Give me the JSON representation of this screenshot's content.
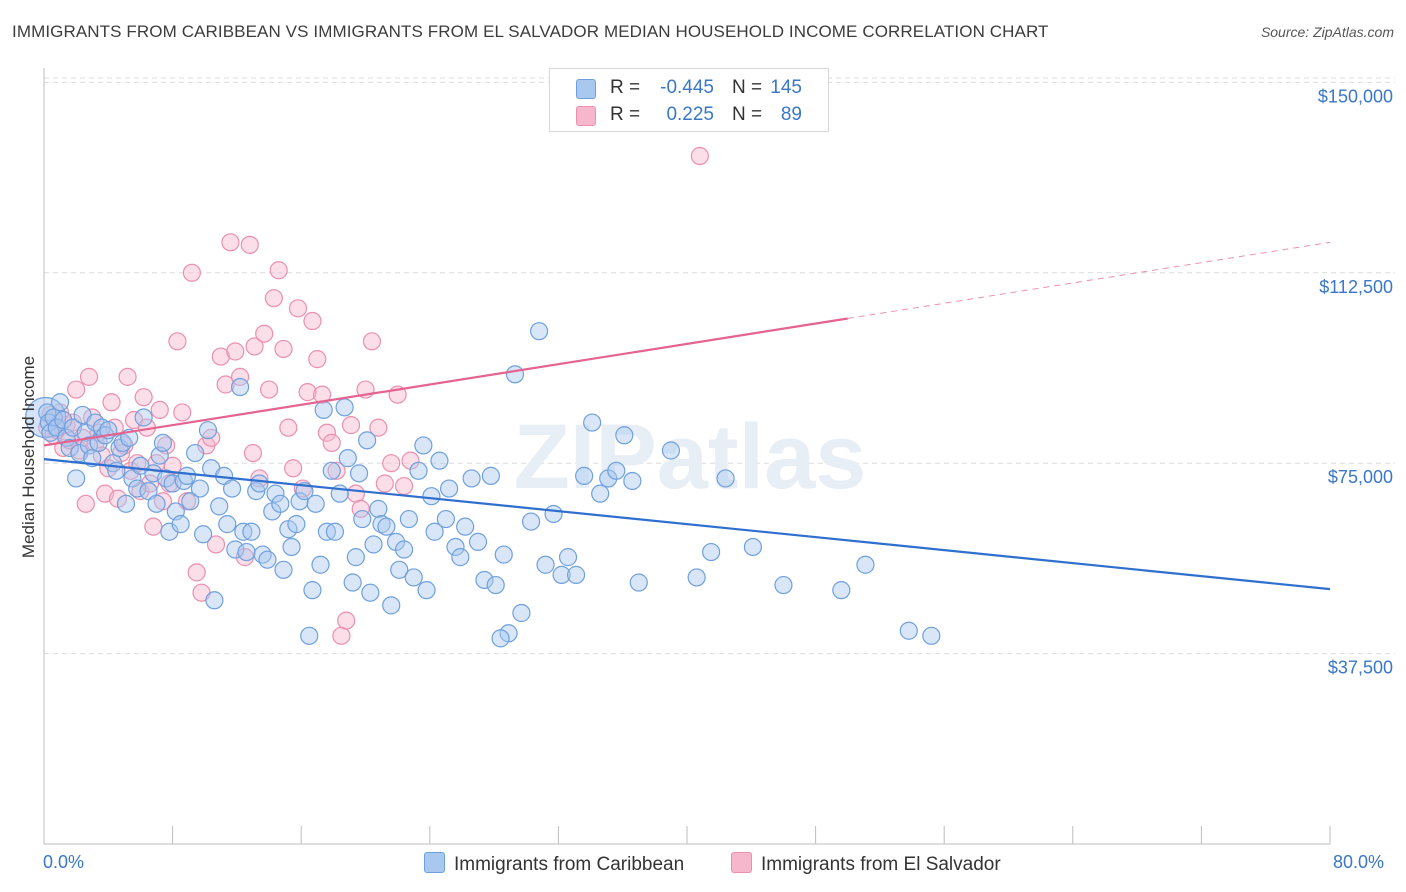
{
  "title": "IMMIGRANTS FROM CARIBBEAN VS IMMIGRANTS FROM EL SALVADOR MEDIAN HOUSEHOLD INCOME CORRELATION CHART",
  "source": "Source: ZipAtlas.com",
  "watermark": "ZIPatlas",
  "legend": {
    "rows": [
      {
        "r_label": "R =",
        "r_value": "-0.445",
        "n_label": "N =",
        "n_value": "145",
        "color": "#a9c8f0"
      },
      {
        "r_label": "R =",
        "r_value": "0.225",
        "n_label": "N =",
        "n_value": "89",
        "color": "#f6b6cb"
      }
    ]
  },
  "colors": {
    "blue_fill": "#a9c8f0",
    "blue_stroke": "#6fa0de",
    "blue_line": "#2f6fcf",
    "pink_fill": "#f6b6cb",
    "pink_stroke": "#ec8fae",
    "pink_line": "#e4638f",
    "accent_text": "#3a77c8"
  },
  "chart_data": {
    "type": "scatter",
    "title": "IMMIGRANTS FROM CARIBBEAN VS IMMIGRANTS FROM EL SALVADOR MEDIAN HOUSEHOLD INCOME CORRELATION CHART",
    "xlabel": "",
    "ylabel": "Median Household Income",
    "xlim": [
      0,
      80
    ],
    "ylim": [
      0,
      155000
    ],
    "x_tick_labels": [
      "0.0%",
      "80.0%"
    ],
    "y_ticks": [
      37500,
      75000,
      112500,
      150000
    ],
    "y_tick_labels": [
      "$37,500",
      "$75,000",
      "$112,500",
      "$150,000"
    ],
    "grid": true,
    "series": [
      {
        "name": "Immigrants from Caribbean",
        "r": -0.445,
        "n": 145,
        "trend": {
          "x0": 0,
          "y0": 75800,
          "x1": 80,
          "y1": 50200
        },
        "points": [
          [
            0.2,
            85000
          ],
          [
            0.3,
            83000
          ],
          [
            0.4,
            81000
          ],
          [
            0.6,
            84000
          ],
          [
            0.8,
            82000
          ],
          [
            1.0,
            87000
          ],
          [
            1.2,
            83500
          ],
          [
            1.4,
            80000
          ],
          [
            1.6,
            78000
          ],
          [
            1.8,
            82000
          ],
          [
            2.0,
            72000
          ],
          [
            2.2,
            77000
          ],
          [
            2.4,
            84500
          ],
          [
            2.6,
            81000
          ],
          [
            2.8,
            78500
          ],
          [
            3.0,
            76000
          ],
          [
            3.2,
            83000
          ],
          [
            3.4,
            79000
          ],
          [
            3.6,
            82000
          ],
          [
            3.8,
            80500
          ],
          [
            4.0,
            81500
          ],
          [
            4.3,
            75000
          ],
          [
            4.5,
            73500
          ],
          [
            4.7,
            78000
          ],
          [
            4.9,
            79000
          ],
          [
            5.1,
            67000
          ],
          [
            5.3,
            80000
          ],
          [
            5.5,
            72000
          ],
          [
            5.8,
            70000
          ],
          [
            6.0,
            74500
          ],
          [
            6.2,
            84000
          ],
          [
            6.5,
            69500
          ],
          [
            6.8,
            73000
          ],
          [
            7.0,
            67000
          ],
          [
            7.2,
            76500
          ],
          [
            7.4,
            79000
          ],
          [
            7.6,
            72000
          ],
          [
            7.8,
            61500
          ],
          [
            8.0,
            71000
          ],
          [
            8.2,
            65500
          ],
          [
            8.5,
            63000
          ],
          [
            8.7,
            71500
          ],
          [
            8.9,
            72500
          ],
          [
            9.1,
            67500
          ],
          [
            9.4,
            77000
          ],
          [
            9.7,
            70000
          ],
          [
            9.9,
            61000
          ],
          [
            10.2,
            81500
          ],
          [
            10.4,
            74000
          ],
          [
            10.6,
            48000
          ],
          [
            10.9,
            66500
          ],
          [
            11.2,
            72500
          ],
          [
            11.4,
            63000
          ],
          [
            11.7,
            70000
          ],
          [
            11.9,
            58000
          ],
          [
            12.2,
            90000
          ],
          [
            12.4,
            61500
          ],
          [
            12.6,
            57500
          ],
          [
            12.9,
            61500
          ],
          [
            13.2,
            69500
          ],
          [
            13.4,
            71000
          ],
          [
            13.6,
            57000
          ],
          [
            13.9,
            56000
          ],
          [
            14.2,
            65500
          ],
          [
            14.4,
            69000
          ],
          [
            14.7,
            67000
          ],
          [
            14.9,
            54000
          ],
          [
            15.2,
            62000
          ],
          [
            15.4,
            58500
          ],
          [
            15.7,
            63000
          ],
          [
            15.9,
            67500
          ],
          [
            16.2,
            69500
          ],
          [
            16.5,
            41000
          ],
          [
            16.7,
            50000
          ],
          [
            16.9,
            67000
          ],
          [
            17.2,
            55000
          ],
          [
            17.4,
            85500
          ],
          [
            17.6,
            61500
          ],
          [
            17.9,
            73500
          ],
          [
            18.1,
            61500
          ],
          [
            18.4,
            69000
          ],
          [
            18.7,
            86000
          ],
          [
            18.9,
            76000
          ],
          [
            19.2,
            51500
          ],
          [
            19.4,
            56500
          ],
          [
            19.6,
            73000
          ],
          [
            19.8,
            64000
          ],
          [
            20.1,
            79500
          ],
          [
            20.3,
            49500
          ],
          [
            20.5,
            59000
          ],
          [
            20.8,
            66000
          ],
          [
            21.0,
            63000
          ],
          [
            21.3,
            62500
          ],
          [
            21.6,
            47000
          ],
          [
            21.9,
            59500
          ],
          [
            22.1,
            54000
          ],
          [
            22.4,
            58000
          ],
          [
            22.7,
            64000
          ],
          [
            23.0,
            52500
          ],
          [
            23.3,
            73500
          ],
          [
            23.6,
            78500
          ],
          [
            23.8,
            50000
          ],
          [
            24.1,
            68500
          ],
          [
            24.3,
            61500
          ],
          [
            24.6,
            75500
          ],
          [
            25.0,
            64000
          ],
          [
            25.2,
            70000
          ],
          [
            25.6,
            58500
          ],
          [
            25.9,
            56500
          ],
          [
            26.2,
            62500
          ],
          [
            26.6,
            72000
          ],
          [
            27.0,
            59500
          ],
          [
            27.4,
            52000
          ],
          [
            27.8,
            72500
          ],
          [
            28.1,
            51000
          ],
          [
            28.6,
            57000
          ],
          [
            28.9,
            41500
          ],
          [
            29.3,
            92500
          ],
          [
            29.7,
            45500
          ],
          [
            30.3,
            63500
          ],
          [
            30.8,
            101000
          ],
          [
            31.2,
            55000
          ],
          [
            31.7,
            65000
          ],
          [
            32.2,
            53000
          ],
          [
            32.6,
            56500
          ],
          [
            33.1,
            53000
          ],
          [
            33.6,
            72500
          ],
          [
            34.1,
            83000
          ],
          [
            34.6,
            69000
          ],
          [
            35.1,
            72000
          ],
          [
            35.6,
            73500
          ],
          [
            36.1,
            80500
          ],
          [
            36.6,
            71500
          ],
          [
            37.0,
            51500
          ],
          [
            39.0,
            77500
          ],
          [
            40.6,
            52500
          ],
          [
            41.5,
            57500
          ],
          [
            42.4,
            72000
          ],
          [
            44.1,
            58500
          ],
          [
            46.0,
            51000
          ],
          [
            49.6,
            50000
          ],
          [
            51.1,
            55000
          ],
          [
            53.8,
            42000
          ],
          [
            55.2,
            41000
          ],
          [
            28.4,
            40500
          ]
        ]
      },
      {
        "name": "Immigrants from El Salvador",
        "r": 0.225,
        "n": 89,
        "trend": {
          "x0": 0,
          "y0": 78500,
          "x1": 50,
          "y1": 103500,
          "dash_to_x": 80,
          "dash_to_y": 118500
        },
        "points": [
          [
            0.2,
            82000
          ],
          [
            0.4,
            84500
          ],
          [
            0.6,
            80500
          ],
          [
            0.8,
            81500
          ],
          [
            1.0,
            85000
          ],
          [
            1.2,
            78000
          ],
          [
            1.4,
            82500
          ],
          [
            1.6,
            79500
          ],
          [
            1.8,
            83000
          ],
          [
            2.0,
            89500
          ],
          [
            2.2,
            77500
          ],
          [
            2.4,
            80000
          ],
          [
            2.6,
            67000
          ],
          [
            2.8,
            92000
          ],
          [
            3.0,
            84000
          ],
          [
            3.2,
            79000
          ],
          [
            3.4,
            81000
          ],
          [
            3.6,
            76500
          ],
          [
            3.8,
            69000
          ],
          [
            4.0,
            74000
          ],
          [
            4.2,
            87000
          ],
          [
            4.4,
            82000
          ],
          [
            4.6,
            68000
          ],
          [
            4.8,
            77000
          ],
          [
            5.0,
            78500
          ],
          [
            5.2,
            92000
          ],
          [
            5.4,
            73500
          ],
          [
            5.6,
            83500
          ],
          [
            5.8,
            75000
          ],
          [
            6.0,
            69500
          ],
          [
            6.2,
            88000
          ],
          [
            6.4,
            82000
          ],
          [
            6.6,
            71000
          ],
          [
            6.8,
            62500
          ],
          [
            7.0,
            75000
          ],
          [
            7.2,
            85500
          ],
          [
            7.4,
            67500
          ],
          [
            7.6,
            78500
          ],
          [
            7.8,
            71000
          ],
          [
            8.0,
            74500
          ],
          [
            8.3,
            99000
          ],
          [
            8.6,
            85000
          ],
          [
            8.9,
            67500
          ],
          [
            9.2,
            112500
          ],
          [
            9.5,
            53500
          ],
          [
            9.8,
            49500
          ],
          [
            10.1,
            78500
          ],
          [
            10.4,
            80000
          ],
          [
            10.7,
            59000
          ],
          [
            11.0,
            96000
          ],
          [
            11.3,
            90500
          ],
          [
            11.6,
            118500
          ],
          [
            11.9,
            97000
          ],
          [
            12.2,
            92000
          ],
          [
            12.5,
            56500
          ],
          [
            12.8,
            118000
          ],
          [
            13.1,
            98000
          ],
          [
            13.4,
            72000
          ],
          [
            13.7,
            100500
          ],
          [
            14.0,
            89500
          ],
          [
            14.3,
            107500
          ],
          [
            14.6,
            113000
          ],
          [
            14.9,
            97500
          ],
          [
            15.2,
            82000
          ],
          [
            15.5,
            74000
          ],
          [
            15.8,
            105500
          ],
          [
            16.1,
            70000
          ],
          [
            16.4,
            89000
          ],
          [
            16.7,
            103000
          ],
          [
            17.0,
            95500
          ],
          [
            17.3,
            88500
          ],
          [
            17.6,
            81000
          ],
          [
            17.9,
            79000
          ],
          [
            18.2,
            73500
          ],
          [
            18.5,
            41000
          ],
          [
            18.8,
            44000
          ],
          [
            19.1,
            82500
          ],
          [
            19.4,
            69000
          ],
          [
            19.7,
            66000
          ],
          [
            20.0,
            89500
          ],
          [
            20.4,
            99000
          ],
          [
            20.8,
            82000
          ],
          [
            21.2,
            71000
          ],
          [
            21.6,
            75000
          ],
          [
            22.0,
            88500
          ],
          [
            22.4,
            70500
          ],
          [
            22.8,
            75500
          ],
          [
            40.8,
            135500
          ],
          [
            13.0,
            77000
          ]
        ]
      }
    ]
  }
}
